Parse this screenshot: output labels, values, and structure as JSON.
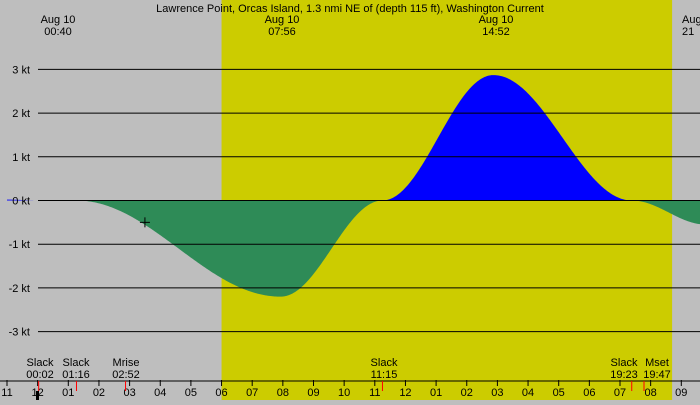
{
  "title": "Lawrence Point, Orcas Island, 1.3 nmi NE of (depth 115 ft), Washington Current",
  "colors": {
    "background": "#bebebe",
    "daylight": "#cccc00",
    "flood": "#0000ff",
    "ebb": "#2e8b57",
    "line": "#000000",
    "moon_marker": "#ff0000"
  },
  "header_labels": [
    {
      "date": "Aug 10",
      "time": "00:40"
    },
    {
      "date": "Aug 10",
      "time": "07:56"
    },
    {
      "date": "Aug 10",
      "time": "14:52"
    },
    {
      "date": "Aug",
      "time": "21"
    }
  ],
  "events": [
    {
      "label": "Slack",
      "time": "00:02"
    },
    {
      "label": "Slack",
      "time": "01:16"
    },
    {
      "label": "Mrise",
      "time": "02:52"
    },
    {
      "label": "Slack",
      "time": "11:15"
    },
    {
      "label": "Slack",
      "time": "19:23"
    },
    {
      "label": "Mset",
      "time": "19:47"
    }
  ],
  "chart_data": {
    "type": "area",
    "x_unit": "hour",
    "y_unit": "kt",
    "ylim": [
      -3.6,
      3.6
    ],
    "xlim": [
      -1.0,
      21.8
    ],
    "y_ticks": [
      {
        "value": 3,
        "label": "3 kt"
      },
      {
        "value": 2,
        "label": "2 kt"
      },
      {
        "value": 1,
        "label": "1 kt"
      },
      {
        "value": 0,
        "label": "0 kt"
      },
      {
        "value": -1,
        "label": "-1 kt"
      },
      {
        "value": -2,
        "label": "-2 kt"
      },
      {
        "value": -3,
        "label": "-3 kt"
      }
    ],
    "x_ticks": [
      {
        "value": -1,
        "label": "11"
      },
      {
        "value": 0,
        "label": "12"
      },
      {
        "value": 1,
        "label": "01"
      },
      {
        "value": 2,
        "label": "02"
      },
      {
        "value": 3,
        "label": "03"
      },
      {
        "value": 4,
        "label": "04"
      },
      {
        "value": 5,
        "label": "05"
      },
      {
        "value": 6,
        "label": "06"
      },
      {
        "value": 7,
        "label": "07"
      },
      {
        "value": 8,
        "label": "08"
      },
      {
        "value": 9,
        "label": "09"
      },
      {
        "value": 10,
        "label": "10"
      },
      {
        "value": 11,
        "label": "11"
      },
      {
        "value": 12,
        "label": "12"
      },
      {
        "value": 13,
        "label": "01"
      },
      {
        "value": 14,
        "label": "02"
      },
      {
        "value": 15,
        "label": "03"
      },
      {
        "value": 16,
        "label": "04"
      },
      {
        "value": 17,
        "label": "05"
      },
      {
        "value": 18,
        "label": "06"
      },
      {
        "value": 19,
        "label": "07"
      },
      {
        "value": 20,
        "label": "08"
      },
      {
        "value": 21,
        "label": "09"
      }
    ],
    "daylight_hours": [
      6.0,
      20.7
    ],
    "series": [
      {
        "points": [
          {
            "t": -1.0,
            "v": 0.02
          },
          {
            "t": 0.033,
            "v": 0.0
          },
          {
            "t": 0.67,
            "v": 0.01
          },
          {
            "t": 1.267,
            "v": 0.0
          },
          {
            "t": 7.93,
            "v": -2.2
          },
          {
            "t": 11.25,
            "v": 0.0
          },
          {
            "t": 14.87,
            "v": 2.87
          },
          {
            "t": 19.383,
            "v": 0.0
          },
          {
            "t": 21.8,
            "v": -0.55
          }
        ]
      }
    ],
    "moon_markers": [
      0.033,
      1.267,
      2.867,
      11.25,
      19.383,
      19.783
    ],
    "crosshair": {
      "t": 3.5,
      "v": -0.5
    }
  }
}
